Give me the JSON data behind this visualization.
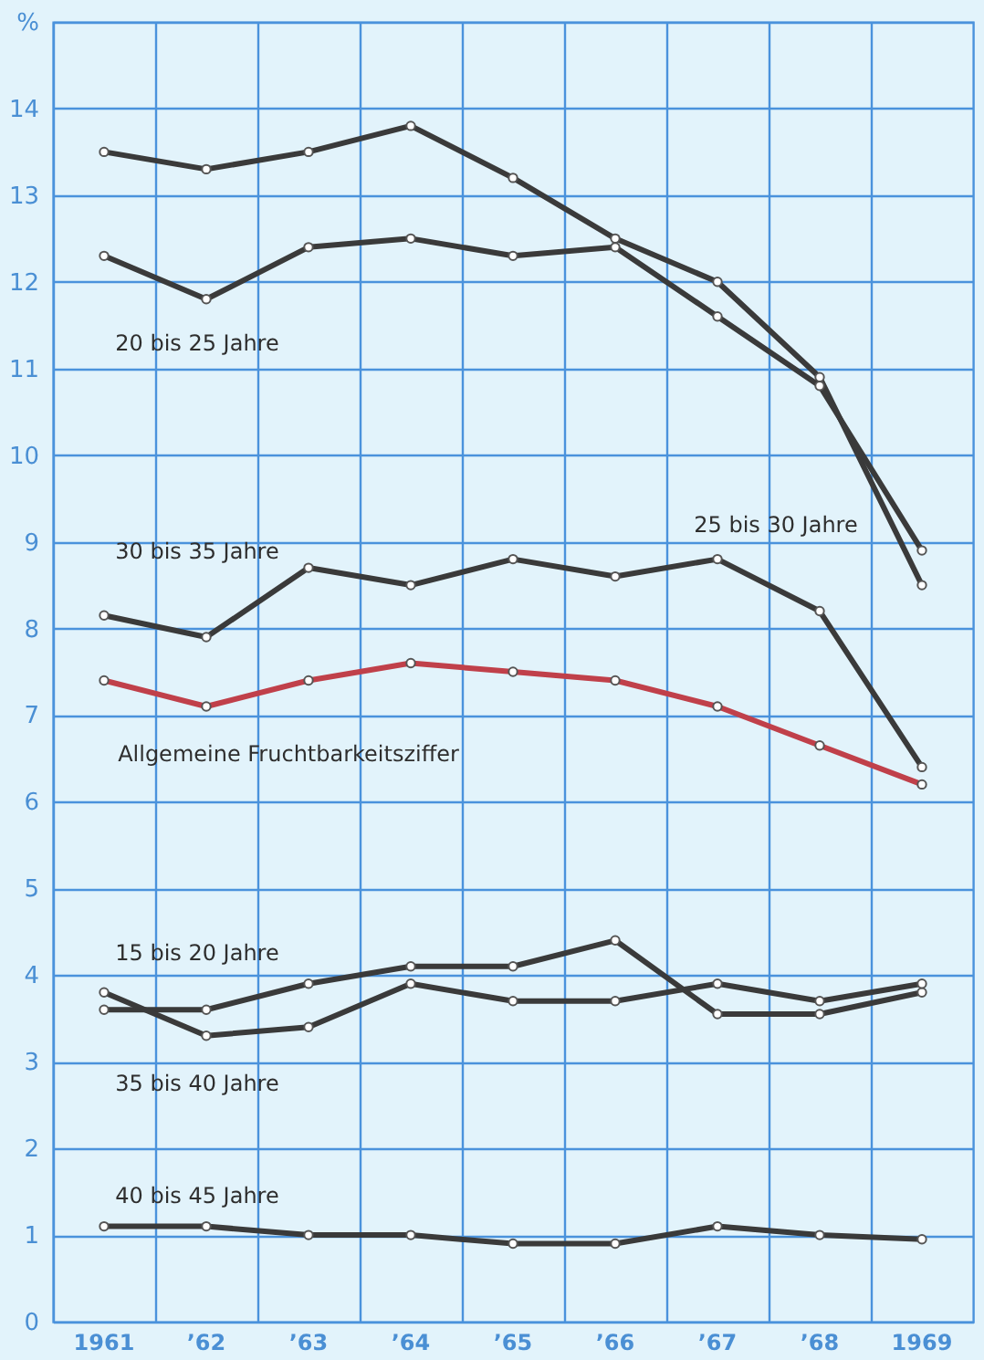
{
  "chart_data": {
    "type": "line",
    "categories": [
      "1961",
      "’62",
      "’63",
      "’64",
      "’65",
      "’66",
      "’67",
      "’68",
      "1969"
    ],
    "series": [
      {
        "name": "25 bis 30 Jahre",
        "color": "#3a3a3a",
        "values": [
          13.5,
          13.3,
          13.5,
          13.8,
          13.2,
          12.5,
          12.0,
          10.9,
          8.5
        ]
      },
      {
        "name": "20 bis 25 Jahre",
        "color": "#3a3a3a",
        "values": [
          12.3,
          11.8,
          12.4,
          12.5,
          12.3,
          12.4,
          11.6,
          10.8,
          8.9
        ]
      },
      {
        "name": "30 bis 35 Jahre",
        "color": "#3a3a3a",
        "values": [
          8.15,
          7.9,
          8.7,
          8.5,
          8.8,
          8.6,
          8.8,
          8.2,
          6.4
        ]
      },
      {
        "name": "Allgemeine Fruchtbarkeitsziffer",
        "color": "#c0404a",
        "values": [
          7.4,
          7.1,
          7.4,
          7.6,
          7.5,
          7.4,
          7.1,
          6.65,
          6.2
        ]
      },
      {
        "name": "15 bis 20 Jahre",
        "color": "#3a3a3a",
        "values": [
          3.6,
          3.6,
          3.9,
          4.1,
          4.1,
          4.4,
          3.55,
          3.55,
          3.8
        ]
      },
      {
        "name": "35 bis 40 Jahre",
        "color": "#3a3a3a",
        "values": [
          3.8,
          3.3,
          3.4,
          3.9,
          3.7,
          3.7,
          3.9,
          3.7,
          3.9
        ]
      },
      {
        "name": "40 bis 45 Jahre",
        "color": "#3a3a3a",
        "values": [
          1.1,
          1.1,
          1.0,
          1.0,
          0.9,
          0.9,
          1.1,
          1.0,
          0.95
        ]
      }
    ],
    "ylim": [
      0,
      15
    ],
    "yticks": [
      0,
      1,
      2,
      3,
      4,
      5,
      6,
      7,
      8,
      9,
      10,
      11,
      12,
      13,
      14,
      {
        "value": 15,
        "label": "%"
      }
    ],
    "grid": true,
    "marker": "circle",
    "line_style": "solid"
  }
}
